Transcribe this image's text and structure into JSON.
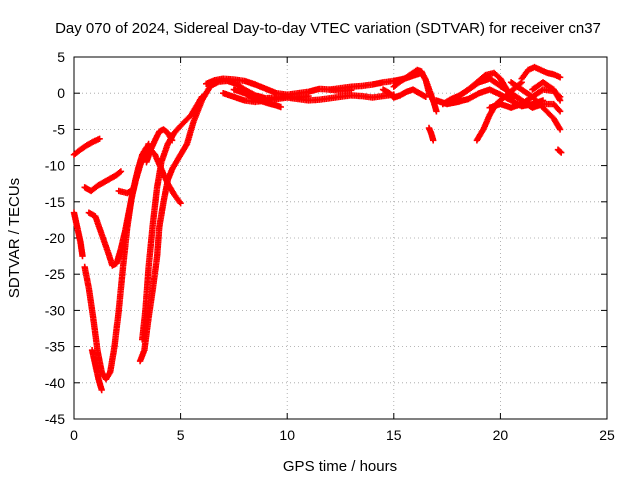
{
  "chart_data": {
    "type": "scatter",
    "title": "Day 070 of 2024, Sidereal Day-to-day VTEC variation (SDTVAR) for receiver cn37",
    "xlabel": "GPS time / hours",
    "ylabel": "SDTVAR / TECUs",
    "xlim": [
      0,
      25
    ],
    "ylim": [
      -45,
      5
    ],
    "xticks": [
      0,
      5,
      10,
      15,
      20,
      25
    ],
    "yticks": [
      5,
      0,
      -5,
      -10,
      -15,
      -20,
      -25,
      -30,
      -35,
      -40,
      -45
    ],
    "x_tick_labels": [
      "0",
      "5",
      "10",
      "15",
      "20",
      "25"
    ],
    "y_tick_labels": [
      "5",
      "0",
      "-5",
      "-10",
      "-15",
      "-20",
      "-25",
      "-30",
      "-35",
      "-40",
      "-45"
    ],
    "grid": true,
    "marker": "+",
    "color": "#ff0000",
    "series": [
      {
        "name": "s01",
        "x": [
          0.0,
          0.3,
          0.6,
          0.9,
          1.2
        ],
        "y": [
          -8.5,
          -7.8,
          -7.2,
          -6.7,
          -6.3
        ]
      },
      {
        "name": "s02",
        "x": [
          0.0,
          0.15,
          0.3,
          0.4
        ],
        "y": [
          -16.5,
          -18.5,
          -20.5,
          -22.5
        ]
      },
      {
        "name": "s03",
        "x": [
          0.5,
          0.8,
          1.1,
          1.4,
          1.7,
          2.0,
          2.2
        ],
        "y": [
          -13.0,
          -13.5,
          -12.8,
          -12.3,
          -11.8,
          -11.3,
          -10.8
        ]
      },
      {
        "name": "s04",
        "x": [
          0.7,
          1.0,
          1.3,
          1.6,
          1.8,
          2.0,
          2.2,
          2.4,
          2.6,
          2.8,
          3.0,
          3.2,
          3.4,
          3.6,
          3.8,
          4.1,
          4.4,
          4.7,
          5.0
        ],
        "y": [
          -16.5,
          -17.0,
          -19.5,
          -22.0,
          -23.8,
          -23.5,
          -21.5,
          -19.0,
          -16.0,
          -13.0,
          -10.5,
          -8.5,
          -7.5,
          -7.8,
          -8.5,
          -10.5,
          -12.5,
          -14.0,
          -15.2
        ]
      },
      {
        "name": "s05",
        "x": [
          0.5,
          0.7,
          0.9,
          1.1,
          1.3,
          1.5,
          1.7,
          1.9,
          2.1,
          2.3,
          2.5,
          2.7,
          2.9,
          3.1,
          3.3,
          3.5
        ],
        "y": [
          -24.0,
          -27.0,
          -31.0,
          -35.5,
          -38.5,
          -39.5,
          -38.5,
          -35.0,
          -30.0,
          -24.0,
          -18.5,
          -14.5,
          -12.0,
          -10.0,
          -8.5,
          -7.0
        ]
      },
      {
        "name": "s06",
        "x": [
          0.85,
          1.0,
          1.15,
          1.3
        ],
        "y": [
          -35.5,
          -37.5,
          -39.5,
          -41.0
        ]
      },
      {
        "name": "s07",
        "x": [
          2.1,
          2.5,
          2.8
        ],
        "y": [
          -13.5,
          -13.8,
          -13.2
        ]
      },
      {
        "name": "s08",
        "x": [
          3.1,
          3.3,
          3.5,
          3.7,
          3.9,
          4.0,
          4.2,
          4.4,
          4.6,
          4.8,
          5.0,
          5.3,
          5.6,
          6.0,
          6.4,
          6.8,
          7.2,
          7.6,
          8.0,
          8.5,
          9.0,
          9.5,
          10.0,
          10.5,
          11.0
        ],
        "y": [
          -37.0,
          -35.5,
          -31.0,
          -27.0,
          -22.5,
          -18.5,
          -15.0,
          -12.0,
          -10.5,
          -9.5,
          -8.5,
          -7.0,
          -4.0,
          -1.0,
          1.0,
          1.6,
          1.7,
          1.3,
          0.5,
          -0.3,
          -0.7,
          -0.6,
          -0.5,
          -0.6,
          -0.4
        ]
      },
      {
        "name": "s09",
        "x": [
          3.2,
          3.35,
          3.5,
          3.7,
          3.9,
          4.1,
          4.4,
          4.7,
          5.0,
          5.5,
          6.0
        ],
        "y": [
          -34.0,
          -30.0,
          -24.0,
          -18.0,
          -13.0,
          -9.5,
          -7.0,
          -5.5,
          -4.5,
          -3.0,
          -0.5
        ]
      },
      {
        "name": "s10",
        "x": [
          3.4,
          3.6,
          3.8,
          4.0,
          4.2,
          4.4,
          4.6
        ],
        "y": [
          -9.5,
          -7.8,
          -6.5,
          -5.3,
          -5.0,
          -5.5,
          -6.5
        ]
      },
      {
        "name": "s11",
        "x": [
          6.2,
          6.6,
          7.0,
          7.5,
          8.0,
          8.5,
          9.0,
          9.5,
          10.0,
          10.5,
          11.0,
          11.5,
          12.0,
          12.5,
          13.0
        ],
        "y": [
          1.3,
          1.8,
          2.0,
          1.9,
          1.7,
          1.2,
          0.6,
          0.0,
          -0.2,
          0.0,
          0.2,
          0.6,
          0.5,
          0.3,
          0.4
        ]
      },
      {
        "name": "s12",
        "x": [
          7.0,
          7.5,
          8.0,
          8.5,
          9.0,
          9.5,
          10.0,
          10.5,
          11.0,
          11.5,
          12.0,
          12.5,
          13.0,
          13.5,
          14.0,
          14.5,
          15.0
        ],
        "y": [
          0.0,
          -0.5,
          -1.0,
          -1.2,
          -1.0,
          -0.8,
          -0.6,
          -0.8,
          -1.0,
          -0.9,
          -0.7,
          -0.5,
          -0.3,
          -0.4,
          -0.6,
          -0.4,
          -0.2
        ]
      },
      {
        "name": "s13",
        "x": [
          7.5,
          8.0,
          8.5,
          9.0,
          9.5,
          9.7
        ],
        "y": [
          0.5,
          0.0,
          -0.8,
          -1.3,
          -1.7,
          -1.9
        ]
      },
      {
        "name": "s14",
        "x": [
          12.0,
          12.5,
          13.0,
          13.5,
          14.0,
          14.5,
          15.0,
          15.5,
          16.0,
          16.3,
          16.5,
          16.7
        ],
        "y": [
          0.5,
          0.7,
          0.9,
          1.0,
          1.2,
          1.5,
          1.7,
          2.0,
          2.5,
          2.8,
          1.8,
          -0.5
        ]
      },
      {
        "name": "s15",
        "x": [
          14.5,
          14.8,
          15.0,
          15.3,
          15.6,
          15.9,
          16.2,
          16.5
        ],
        "y": [
          0.5,
          0.0,
          -0.6,
          -0.3,
          0.2,
          0.5,
          0.0,
          -0.5
        ]
      },
      {
        "name": "s16",
        "x": [
          15.0,
          15.3,
          15.6,
          15.9,
          16.1,
          16.3,
          16.5,
          16.7,
          16.9,
          17.0
        ],
        "y": [
          0.9,
          1.6,
          2.2,
          2.8,
          3.2,
          3.0,
          1.8,
          0.2,
          -1.5,
          -2.5
        ]
      },
      {
        "name": "s17",
        "x": [
          16.65,
          16.75,
          16.85
        ],
        "y": [
          -4.8,
          -5.5,
          -6.5
        ]
      },
      {
        "name": "s18",
        "x": [
          17.3,
          17.7,
          18.1,
          18.5,
          18.9,
          19.3,
          19.7,
          20.0,
          20.3,
          20.6
        ],
        "y": [
          -1.5,
          -0.8,
          -0.3,
          0.5,
          1.5,
          2.5,
          2.8,
          2.0,
          0.5,
          -0.7
        ]
      },
      {
        "name": "s19",
        "x": [
          17.0,
          17.5,
          18.0,
          18.5,
          19.0,
          19.5,
          20.0,
          20.5,
          21.0,
          21.5,
          22.0
        ],
        "y": [
          -1.0,
          -1.5,
          -1.2,
          -0.8,
          0.0,
          0.5,
          -0.2,
          -1.0,
          -1.8,
          -1.5,
          -1.0
        ]
      },
      {
        "name": "s20",
        "x": [
          18.0,
          18.5,
          19.0,
          19.5,
          20.0,
          20.5,
          21.0,
          21.5,
          22.0,
          22.5,
          22.8
        ],
        "y": [
          -0.5,
          0.5,
          1.5,
          2.0,
          1.0,
          0.0,
          -1.0,
          -2.0,
          -1.5,
          -1.5,
          -2.5
        ]
      },
      {
        "name": "s21",
        "x": [
          18.9,
          19.2,
          19.5,
          19.8,
          20.2,
          20.6,
          21.0
        ],
        "y": [
          -6.5,
          -5.0,
          -3.0,
          -1.5,
          -0.5,
          0.5,
          1.5
        ]
      },
      {
        "name": "s22",
        "x": [
          19.5,
          20.0,
          20.5,
          21.0,
          21.5,
          22.0,
          22.5,
          22.8
        ],
        "y": [
          -2.0,
          -1.5,
          -2.0,
          -1.5,
          -0.5,
          -2.0,
          -3.5,
          -5.0
        ]
      },
      {
        "name": "s23",
        "x": [
          21.0,
          21.3,
          21.6,
          21.9,
          22.2,
          22.5,
          22.8
        ],
        "y": [
          2.0,
          3.2,
          3.6,
          3.2,
          2.8,
          2.6,
          2.2
        ]
      },
      {
        "name": "s24",
        "x": [
          20.5,
          21.0,
          21.5,
          22.0,
          22.5,
          22.8
        ],
        "y": [
          1.5,
          0.5,
          -0.5,
          0.5,
          0.3,
          -0.5
        ]
      },
      {
        "name": "s25",
        "x": [
          21.5,
          22.0,
          22.5,
          22.8
        ],
        "y": [
          0.5,
          1.5,
          0.5,
          -1.0
        ]
      },
      {
        "name": "s26",
        "x": [
          22.7,
          22.85
        ],
        "y": [
          -7.8,
          -8.2
        ]
      }
    ]
  }
}
